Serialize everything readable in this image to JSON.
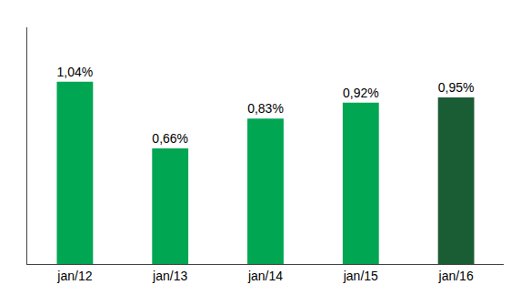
{
  "chart_data": {
    "type": "bar",
    "categories": [
      "jan/12",
      "jan/13",
      "jan/14",
      "jan/15",
      "jan/16"
    ],
    "values": [
      1.04,
      0.66,
      0.83,
      0.92,
      0.95
    ],
    "value_labels": [
      "1,04%",
      "0,66%",
      "0,83%",
      "0,92%",
      "0,95%"
    ],
    "colors": [
      "#00a651",
      "#00a651",
      "#00a651",
      "#00a651",
      "#1a5c34"
    ],
    "ylim": [
      0,
      1.35
    ],
    "grid": false,
    "tick_labels": "x",
    "data_labels": true
  }
}
